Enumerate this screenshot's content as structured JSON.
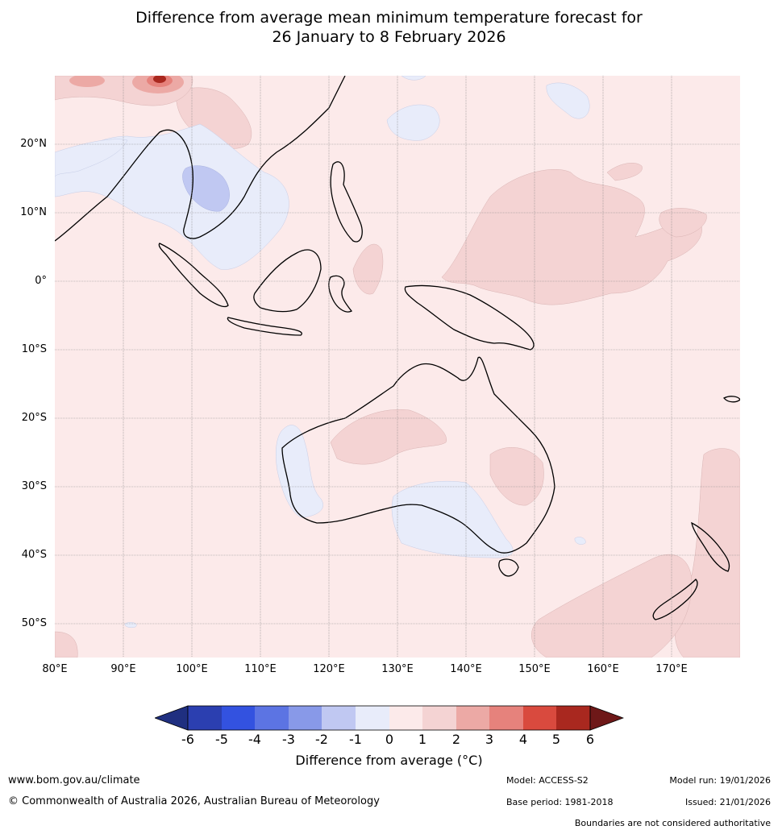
{
  "title": {
    "line1": "Difference from average mean minimum temperature forecast for",
    "line2": "26 January to 8 February 2026"
  },
  "map": {
    "region": "Maritime Continent, Australia and Southwest Pacific",
    "lat_labels": [
      "20°N",
      "10°N",
      "0°",
      "10°S",
      "20°S",
      "30°S",
      "40°S",
      "50°S"
    ],
    "lon_labels": [
      "80°E",
      "90°E",
      "100°E",
      "110°E",
      "120°E",
      "130°E",
      "140°E",
      "150°E",
      "160°E",
      "170°E"
    ],
    "lat_values": [
      20,
      10,
      0,
      -10,
      -20,
      -30,
      -40,
      -50
    ],
    "lon_values": [
      80,
      90,
      100,
      110,
      120,
      130,
      140,
      150,
      160,
      170
    ],
    "extent": {
      "lon_min": 80,
      "lon_max": 180,
      "lat_min": -55,
      "lat_max": 30
    }
  },
  "colorbar": {
    "ticks": [
      "-6",
      "-5",
      "-4",
      "-3",
      "-2",
      "-1",
      "0",
      "1",
      "2",
      "3",
      "4",
      "5",
      "6"
    ],
    "colors": [
      "#1f2f80",
      "#2b3fb0",
      "#3352e0",
      "#5c74e3",
      "#8899e8",
      "#c0c8f2",
      "#e8ecfa",
      "#fceaea",
      "#f4d3d3",
      "#eca9a5",
      "#e6827c",
      "#d94a3e",
      "#a9281f",
      "#6e1818"
    ],
    "title": "Difference from average (°C)"
  },
  "footer": {
    "website": "www.bom.gov.au/climate",
    "copyright": "© Commonwealth of Australia 2026, Australian Bureau of Meteorology",
    "model": "Model: ACCESS-S2",
    "base_period": "Base period: 1981-2018",
    "model_run": "Model run: 19/01/2026",
    "issued": "Issued: 21/01/2026",
    "disclaimer": "Boundaries are not considered authoritative"
  }
}
